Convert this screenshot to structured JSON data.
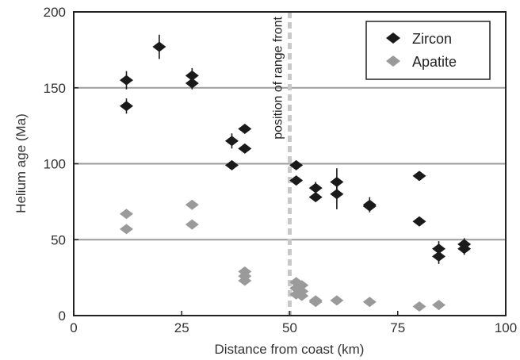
{
  "chart_data": {
    "type": "scatter",
    "title": "",
    "xlabel": "Distance from coast (km)",
    "ylabel": "Helium age (Ma)",
    "xlim": [
      0,
      100
    ],
    "ylim": [
      0,
      200
    ],
    "x_ticks": [
      0,
      25,
      50,
      75,
      100
    ],
    "y_ticks": [
      0,
      50,
      100,
      150,
      200
    ],
    "gridlines_y": [
      50,
      100,
      150
    ],
    "legend_position": "top-right",
    "annotation": {
      "x": 50,
      "label": "position of range front"
    },
    "series": [
      {
        "name": "Zircon",
        "color": "#1a1a1a",
        "marker": "diamond",
        "points": [
          {
            "x": 12.2,
            "y": 155,
            "err": 6
          },
          {
            "x": 12.2,
            "y": 138,
            "err": 5
          },
          {
            "x": 19.8,
            "y": 177,
            "err": 8
          },
          {
            "x": 27.4,
            "y": 158,
            "err": 5
          },
          {
            "x": 27.4,
            "y": 153,
            "err": 4
          },
          {
            "x": 36.6,
            "y": 115,
            "err": 5
          },
          {
            "x": 36.6,
            "y": 99,
            "err": 3
          },
          {
            "x": 39.6,
            "y": 123,
            "err": 3
          },
          {
            "x": 39.6,
            "y": 110,
            "err": 3
          },
          {
            "x": 51.5,
            "y": 99,
            "err": 3
          },
          {
            "x": 51.5,
            "y": 89,
            "err": 3
          },
          {
            "x": 56.0,
            "y": 84,
            "err": 4
          },
          {
            "x": 56.0,
            "y": 78,
            "err": 3
          },
          {
            "x": 60.9,
            "y": 88,
            "err": 9
          },
          {
            "x": 60.9,
            "y": 80,
            "err": 10
          },
          {
            "x": 68.5,
            "y": 73,
            "err": 5
          },
          {
            "x": 68.5,
            "y": 72,
            "err": 3
          },
          {
            "x": 80.0,
            "y": 92,
            "err": 2
          },
          {
            "x": 80.0,
            "y": 62,
            "err": 2
          },
          {
            "x": 84.5,
            "y": 44,
            "err": 5
          },
          {
            "x": 84.5,
            "y": 39,
            "err": 5
          },
          {
            "x": 90.4,
            "y": 47,
            "err": 4
          },
          {
            "x": 90.4,
            "y": 44,
            "err": 4
          }
        ]
      },
      {
        "name": "Apatite",
        "color": "#9a9a9a",
        "marker": "diamond",
        "points": [
          {
            "x": 12.2,
            "y": 67,
            "err": 0
          },
          {
            "x": 12.2,
            "y": 57,
            "err": 0
          },
          {
            "x": 27.4,
            "y": 73,
            "err": 0
          },
          {
            "x": 27.4,
            "y": 60,
            "err": 0
          },
          {
            "x": 39.6,
            "y": 29,
            "err": 2
          },
          {
            "x": 39.6,
            "y": 26,
            "err": 0
          },
          {
            "x": 39.6,
            "y": 23,
            "err": 3
          },
          {
            "x": 51.5,
            "y": 22,
            "err": 0
          },
          {
            "x": 51.5,
            "y": 18,
            "err": 0
          },
          {
            "x": 52.8,
            "y": 20,
            "err": 0
          },
          {
            "x": 52.8,
            "y": 16,
            "err": 0
          },
          {
            "x": 51.5,
            "y": 14,
            "err": 0
          },
          {
            "x": 52.8,
            "y": 13,
            "err": 0
          },
          {
            "x": 56.0,
            "y": 10,
            "err": 0
          },
          {
            "x": 56.0,
            "y": 9,
            "err": 0
          },
          {
            "x": 60.9,
            "y": 10,
            "err": 0
          },
          {
            "x": 68.5,
            "y": 9,
            "err": 0
          },
          {
            "x": 80.0,
            "y": 6,
            "err": 0
          },
          {
            "x": 84.5,
            "y": 7,
            "err": 0
          }
        ]
      }
    ]
  }
}
